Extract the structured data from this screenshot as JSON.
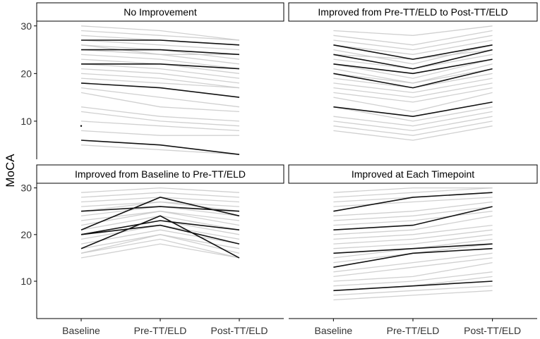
{
  "chart_data": {
    "type": "line",
    "ylabel": "MoCA",
    "xlabel": "",
    "timepoints": [
      "Baseline",
      "Pre-TT/ELD",
      "Post-TT/ELD"
    ],
    "ylim": [
      2,
      31
    ],
    "yticks": [
      10,
      20,
      30
    ],
    "grid": false,
    "panels": [
      {
        "title": "No Improvement",
        "highlighted": [
          [
            27,
            27,
            26
          ],
          [
            25,
            25,
            24
          ],
          [
            22,
            22,
            21
          ],
          [
            18,
            17,
            15
          ],
          [
            6,
            5,
            3
          ]
        ],
        "background": [
          [
            30,
            29,
            27
          ],
          [
            29,
            28,
            27
          ],
          [
            28,
            27,
            26
          ],
          [
            27,
            26,
            25
          ],
          [
            26,
            25,
            23
          ],
          [
            26,
            24,
            24
          ],
          [
            25,
            24,
            22
          ],
          [
            24,
            23,
            21
          ],
          [
            23,
            22,
            20
          ],
          [
            22,
            21,
            19
          ],
          [
            21,
            20,
            18
          ],
          [
            20,
            19,
            17
          ],
          [
            19,
            18,
            17
          ],
          [
            17,
            15,
            13
          ],
          [
            16,
            13,
            12
          ],
          [
            13,
            11,
            10
          ],
          [
            12,
            10,
            9
          ],
          [
            10,
            9,
            8
          ],
          [
            8,
            7,
            7
          ],
          [
            5,
            4,
            3
          ]
        ],
        "isolated_points": [
          [
            0,
            9
          ]
        ]
      },
      {
        "title": "Improved from Pre-TT/ELD to Post-TT/ELD",
        "highlighted": [
          [
            26,
            23,
            26
          ],
          [
            24,
            21,
            25
          ],
          [
            22,
            20,
            23
          ],
          [
            20,
            17,
            21
          ],
          [
            13,
            11,
            14
          ]
        ],
        "background": [
          [
            29,
            28,
            30
          ],
          [
            28,
            26,
            29
          ],
          [
            27,
            25,
            28
          ],
          [
            26,
            24,
            27
          ],
          [
            25,
            22,
            26
          ],
          [
            24,
            23,
            25
          ],
          [
            23,
            21,
            24
          ],
          [
            22,
            19,
            23
          ],
          [
            21,
            18,
            22
          ],
          [
            20,
            18,
            21
          ],
          [
            19,
            17,
            20
          ],
          [
            18,
            16,
            19
          ],
          [
            17,
            15,
            18
          ],
          [
            16,
            14,
            17
          ],
          [
            15,
            12,
            16
          ],
          [
            13,
            10,
            13
          ],
          [
            11,
            9,
            12
          ],
          [
            10,
            8,
            11
          ],
          [
            9,
            7,
            10
          ],
          [
            8,
            6,
            9
          ]
        ],
        "isolated_points": []
      },
      {
        "title": "Improved from Baseline to Pre-TT/ELD",
        "highlighted": [
          [
            25,
            26,
            25
          ],
          [
            21,
            28,
            24
          ],
          [
            20,
            23,
            21
          ],
          [
            20,
            22,
            18
          ],
          [
            17,
            24,
            15
          ]
        ],
        "background": [
          [
            29,
            30,
            29
          ],
          [
            28,
            29,
            28
          ],
          [
            27,
            28,
            27
          ],
          [
            26,
            27,
            26
          ],
          [
            25,
            27,
            25
          ],
          [
            24,
            26,
            24
          ],
          [
            23,
            25,
            23
          ],
          [
            22,
            25,
            22
          ],
          [
            21,
            24,
            21
          ],
          [
            20,
            23,
            20
          ],
          [
            19,
            22,
            19
          ],
          [
            18,
            21,
            18
          ],
          [
            17,
            20,
            17
          ],
          [
            16,
            20,
            16
          ],
          [
            16,
            19,
            15
          ],
          [
            15,
            18,
            15
          ]
        ],
        "isolated_points": []
      },
      {
        "title": "Improved at Each Timepoint",
        "highlighted": [
          [
            25,
            28,
            29
          ],
          [
            21,
            22,
            26
          ],
          [
            16,
            17,
            18
          ],
          [
            13,
            16,
            17
          ],
          [
            8,
            9,
            10
          ]
        ],
        "background": [
          [
            29,
            30,
            30
          ],
          [
            28,
            29,
            30
          ],
          [
            27,
            28,
            29
          ],
          [
            26,
            27,
            28
          ],
          [
            24,
            25,
            27
          ],
          [
            23,
            24,
            26
          ],
          [
            22,
            23,
            25
          ],
          [
            20,
            21,
            24
          ],
          [
            19,
            20,
            22
          ],
          [
            18,
            19,
            21
          ],
          [
            17,
            18,
            20
          ],
          [
            15,
            17,
            19
          ],
          [
            14,
            16,
            18
          ],
          [
            12,
            14,
            16
          ],
          [
            11,
            13,
            15
          ],
          [
            10,
            11,
            14
          ],
          [
            9,
            10,
            12
          ],
          [
            8,
            9,
            11
          ],
          [
            7,
            8,
            9
          ],
          [
            6,
            7,
            8
          ]
        ],
        "isolated_points": []
      }
    ]
  }
}
